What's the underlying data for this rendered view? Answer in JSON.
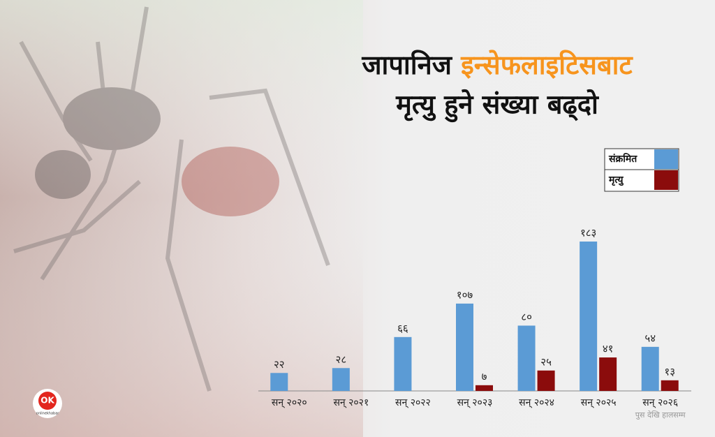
{
  "chart_data": {
    "type": "bar",
    "title": [
      "जापानिज",
      "इन्सेफलाइटिसबाट",
      "मृत्यु हुने संख्या बढ्दो"
    ],
    "title_color": "#111111",
    "title_highlight_color": "#f7941d",
    "categories": [
      "सन् २०२०",
      "सन् २०२१",
      "सन् २०२२",
      "सन् २०२३",
      "सन् २०२४",
      "सन् २०२५",
      "सन् २०२६"
    ],
    "series": [
      {
        "name": "संक्रमित",
        "color": "#5b9bd5",
        "values": [
          22,
          28,
          66,
          107,
          80,
          183,
          54
        ],
        "value_labels": [
          "२२",
          "२८",
          "६६",
          "१०७",
          "८०",
          "१८३",
          "५४"
        ]
      },
      {
        "name": "मृत्यु",
        "color": "#8b0c0c",
        "values": [
          null,
          null,
          null,
          7,
          25,
          41,
          13
        ],
        "value_labels": [
          null,
          null,
          null,
          "७",
          "२५",
          "४१",
          "१३"
        ]
      }
    ],
    "ylim": [
      0,
      183
    ],
    "legend": "top-right",
    "annotation": "पुस देखि हालसम्म",
    "brand": [
      "OK",
      "onlinekhabar"
    ]
  }
}
